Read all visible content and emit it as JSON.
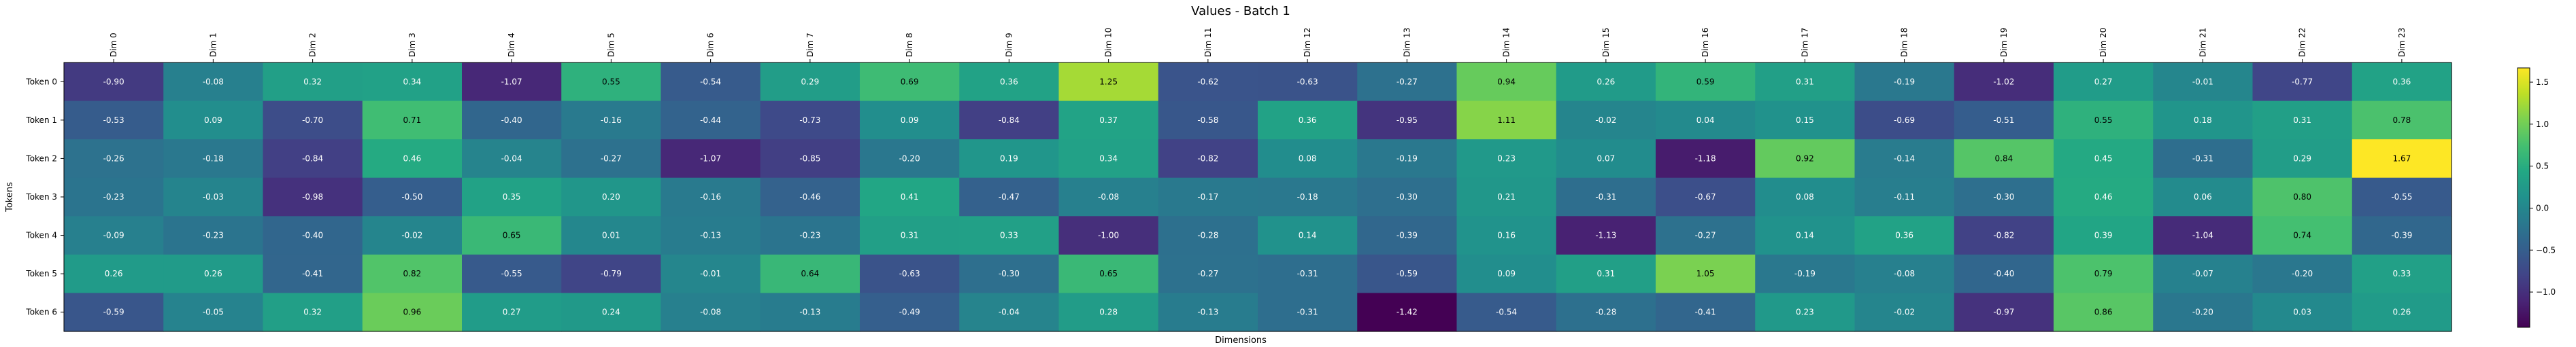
{
  "chart_data": {
    "type": "heatmap",
    "title": "Values - Batch 1",
    "xlabel": "Dimensions",
    "ylabel": "Tokens",
    "x_categories": [
      "Dim 0",
      "Dim 1",
      "Dim 2",
      "Dim 3",
      "Dim 4",
      "Dim 5",
      "Dim 6",
      "Dim 7",
      "Dim 8",
      "Dim 9",
      "Dim 10",
      "Dim 11",
      "Dim 12",
      "Dim 13",
      "Dim 14",
      "Dim 15",
      "Dim 16",
      "Dim 17",
      "Dim 18",
      "Dim 19",
      "Dim 20",
      "Dim 21",
      "Dim 22",
      "Dim 23"
    ],
    "y_categories": [
      "Token 0",
      "Token 1",
      "Token 2",
      "Token 3",
      "Token 4",
      "Token 5",
      "Token 6"
    ],
    "values": [
      [
        -0.9,
        -0.08,
        0.32,
        0.34,
        -1.07,
        0.55,
        -0.54,
        0.29,
        0.69,
        0.36,
        1.25,
        -0.62,
        -0.63,
        -0.27,
        0.94,
        0.26,
        0.59,
        0.31,
        -0.19,
        -1.02,
        0.27,
        -0.01,
        -0.77,
        0.36
      ],
      [
        -0.53,
        0.09,
        -0.7,
        0.71,
        -0.4,
        -0.16,
        -0.44,
        -0.73,
        0.09,
        -0.84,
        0.37,
        -0.58,
        0.36,
        -0.95,
        1.11,
        -0.02,
        0.04,
        0.15,
        -0.69,
        -0.51,
        0.55,
        0.18,
        0.31,
        0.78
      ],
      [
        -0.26,
        -0.18,
        -0.84,
        0.46,
        -0.04,
        -0.27,
        -1.07,
        -0.85,
        -0.2,
        0.19,
        0.34,
        -0.82,
        0.08,
        -0.19,
        0.23,
        0.07,
        -1.18,
        0.92,
        -0.14,
        0.84,
        0.45,
        -0.31,
        0.29,
        1.67
      ],
      [
        -0.23,
        -0.03,
        -0.98,
        -0.5,
        0.35,
        0.2,
        -0.16,
        -0.46,
        0.41,
        -0.47,
        -0.08,
        -0.17,
        -0.18,
        -0.3,
        0.21,
        -0.31,
        -0.67,
        0.08,
        -0.11,
        -0.3,
        0.46,
        0.06,
        0.8,
        -0.55
      ],
      [
        -0.09,
        -0.23,
        -0.4,
        -0.02,
        0.65,
        0.01,
        -0.13,
        -0.23,
        0.31,
        0.33,
        -1.0,
        -0.28,
        0.14,
        -0.39,
        0.16,
        -1.13,
        -0.27,
        0.14,
        0.36,
        -0.82,
        0.39,
        -1.04,
        0.74,
        -0.39
      ],
      [
        0.26,
        0.26,
        -0.41,
        0.82,
        -0.55,
        -0.79,
        -0.01,
        0.64,
        -0.63,
        -0.3,
        0.65,
        -0.27,
        -0.31,
        -0.59,
        0.09,
        0.31,
        1.05,
        -0.19,
        -0.08,
        -0.4,
        0.79,
        -0.07,
        -0.2,
        0.33
      ],
      [
        -0.59,
        -0.05,
        0.32,
        0.96,
        0.27,
        0.24,
        -0.08,
        -0.13,
        -0.49,
        -0.04,
        0.28,
        -0.13,
        -0.31,
        -1.42,
        -0.54,
        -0.28,
        -0.41,
        0.23,
        -0.02,
        -0.97,
        0.86,
        -0.2,
        0.03,
        0.26
      ]
    ],
    "vmin": -1.42,
    "vmax": 1.67,
    "colormap": "viridis",
    "colorbar_ticks": [
      -1.0,
      -0.5,
      0.0,
      0.5,
      1.0,
      1.5
    ],
    "colorbar_tick_labels": [
      "−1.0",
      "−0.5",
      "0.0",
      "0.5",
      "1.0",
      "1.5"
    ]
  }
}
